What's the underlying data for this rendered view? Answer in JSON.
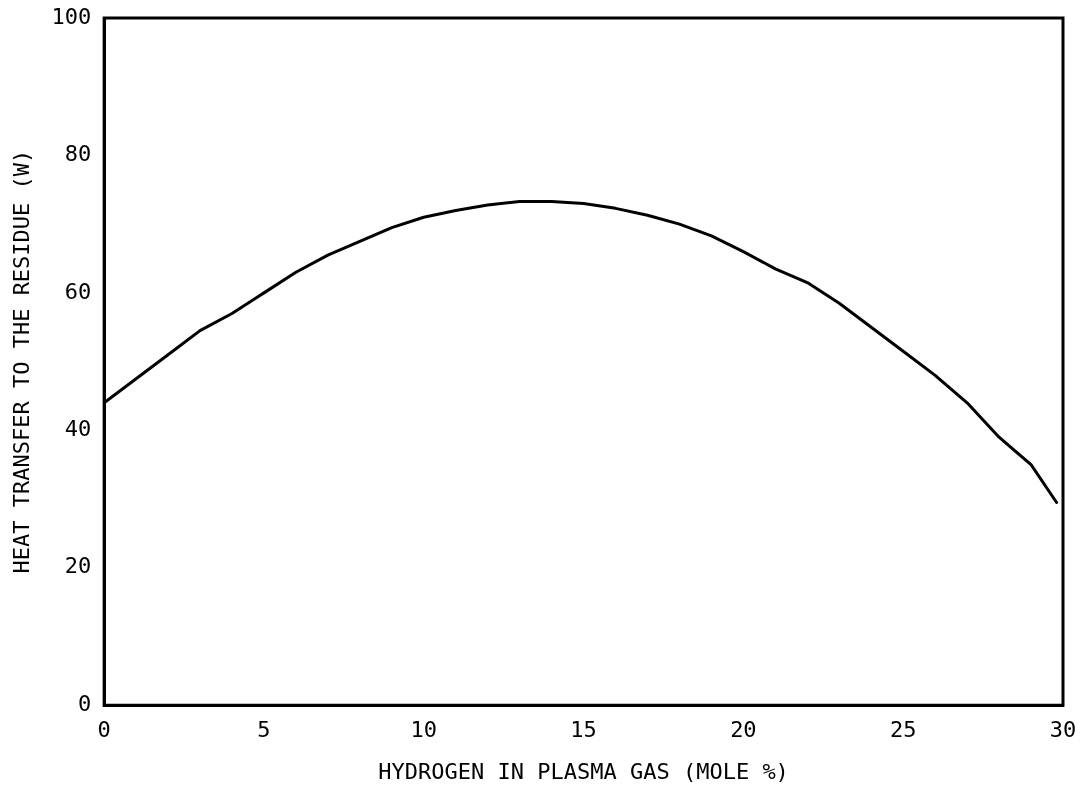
{
  "chart_data": {
    "type": "line",
    "xlabel": "HYDROGEN IN PLASMA GAS (MOLE %)",
    "ylabel": "HEAT TRANSFER TO THE RESIDUE (W)",
    "x": [
      0,
      1,
      2,
      3,
      4,
      5,
      6,
      7,
      8,
      9,
      10,
      11,
      12,
      13,
      14,
      15,
      16,
      17,
      18,
      19,
      20,
      21,
      22,
      23,
      24,
      25,
      26,
      27,
      28,
      29,
      29.8
    ],
    "series": [
      {
        "color": "#000000",
        "values": [
          44,
          47.5,
          51,
          54.5,
          57,
          60,
          63,
          65.5,
          67.5,
          69.5,
          71,
          72,
          72.8,
          73.3,
          73.3,
          73,
          72.3,
          71.3,
          70,
          68.3,
          66,
          63.5,
          61.5,
          58.5,
          55,
          51.5,
          48,
          44,
          39,
          35,
          29.5
        ]
      }
    ],
    "xlim": [
      0,
      30
    ],
    "xticks": [
      0,
      5,
      10,
      15,
      20,
      25,
      30
    ],
    "ylim": [
      0,
      100
    ],
    "yticks": [
      0,
      20,
      40,
      60,
      80,
      100
    ],
    "grid": false,
    "legend": false,
    "marker": "none",
    "line_style": "solid"
  }
}
